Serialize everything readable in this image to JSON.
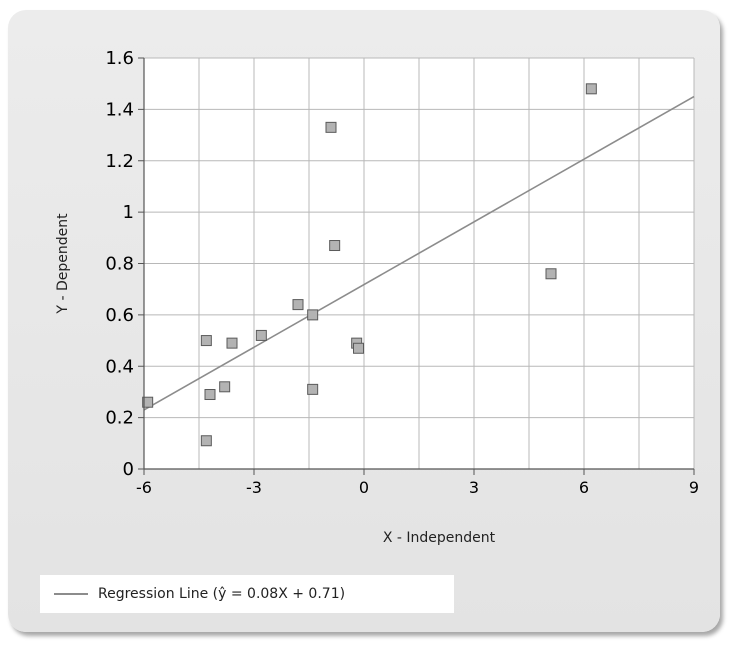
{
  "chart_data": {
    "type": "scatter",
    "title": "",
    "xlabel": "X - Independent",
    "ylabel": "Y - Dependent",
    "xlim": [
      -6,
      9
    ],
    "ylim": [
      0,
      1.6
    ],
    "x_ticks": [
      -6,
      -3,
      0,
      3,
      6,
      9
    ],
    "x_tick_labels": [
      "-6",
      "-3",
      "0",
      "3",
      "6",
      "9"
    ],
    "y_ticks": [
      0,
      0.2,
      0.4,
      0.6,
      0.8,
      1,
      1.2,
      1.4,
      1.6
    ],
    "y_tick_labels": [
      "0",
      "0.2",
      "0.4",
      "0.6",
      "0.8",
      "1",
      "1.2",
      "1.4",
      "1.6"
    ],
    "x_minor_gridlines": [
      -4.5,
      -1.5,
      1.5,
      4.5,
      7.5
    ],
    "grid": true,
    "legend_position": "bottom-left",
    "series": [
      {
        "type": "scatter",
        "marker": "square",
        "points": [
          {
            "x": -5.9,
            "y": 0.26
          },
          {
            "x": -4.3,
            "y": 0.5
          },
          {
            "x": -4.3,
            "y": 0.11
          },
          {
            "x": -4.2,
            "y": 0.29
          },
          {
            "x": -3.8,
            "y": 0.32
          },
          {
            "x": -3.6,
            "y": 0.49
          },
          {
            "x": -2.8,
            "y": 0.52
          },
          {
            "x": -1.8,
            "y": 0.64
          },
          {
            "x": -1.4,
            "y": 0.6
          },
          {
            "x": -1.4,
            "y": 0.31
          },
          {
            "x": -0.9,
            "y": 1.33
          },
          {
            "x": -0.8,
            "y": 0.87
          },
          {
            "x": -0.2,
            "y": 0.49
          },
          {
            "x": -0.15,
            "y": 0.47
          },
          {
            "x": 5.1,
            "y": 0.76
          },
          {
            "x": 6.2,
            "y": 1.48
          }
        ]
      },
      {
        "name": "Regression Line (ŷ = 0.08X + 0.71)",
        "type": "line",
        "color": "#8c8c8c",
        "x": [
          -6,
          9
        ],
        "y": [
          0.23,
          1.45
        ]
      }
    ],
    "colors": {
      "marker_fill": "#b3b3b3",
      "marker_stroke": "#5a5a5a",
      "grid": "#b8b8b8",
      "plot_background": "#ffffff",
      "axis": "#555555"
    }
  },
  "legend": {
    "label": "Regression Line (ŷ = 0.08X + 0.71)"
  }
}
